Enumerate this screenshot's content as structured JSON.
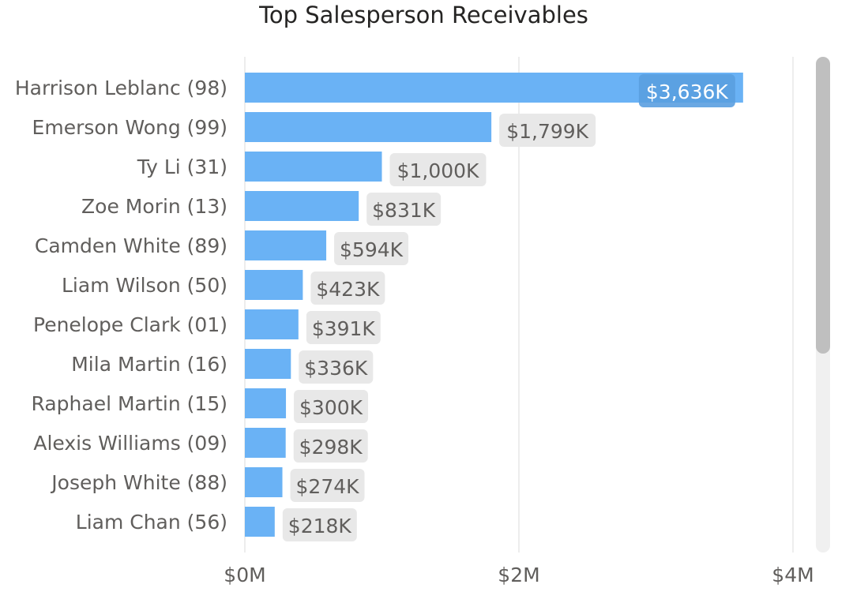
{
  "chart_data": {
    "type": "bar",
    "orientation": "horizontal",
    "title": "Top Salesperson Receivables",
    "categories": [
      "Harrison Leblanc (98)",
      "Emerson Wong (99)",
      "Ty Li (31)",
      "Zoe Morin (13)",
      "Camden White (89)",
      "Liam Wilson (50)",
      "Penelope Clark (01)",
      "Mila Martin (16)",
      "Raphael Martin (15)",
      "Alexis Williams (09)",
      "Joseph White (88)",
      "Liam Chan (56)"
    ],
    "values": [
      3636,
      1799,
      1000,
      831,
      594,
      423,
      391,
      336,
      300,
      298,
      274,
      218
    ],
    "value_labels": [
      "$3,636K",
      "$1,799K",
      "$1,000K",
      "$831K",
      "$594K",
      "$423K",
      "$391K",
      "$336K",
      "$300K",
      "$298K",
      "$274K",
      "$218K"
    ],
    "value_unit": "K",
    "x_ticks": [
      0,
      2000,
      4000
    ],
    "x_tick_labels": [
      "$0M",
      "$2M",
      "$4M"
    ],
    "xlim": [
      0,
      4000
    ],
    "grid": true,
    "bar_color": "#6AB2F5",
    "scrollbar": true
  }
}
